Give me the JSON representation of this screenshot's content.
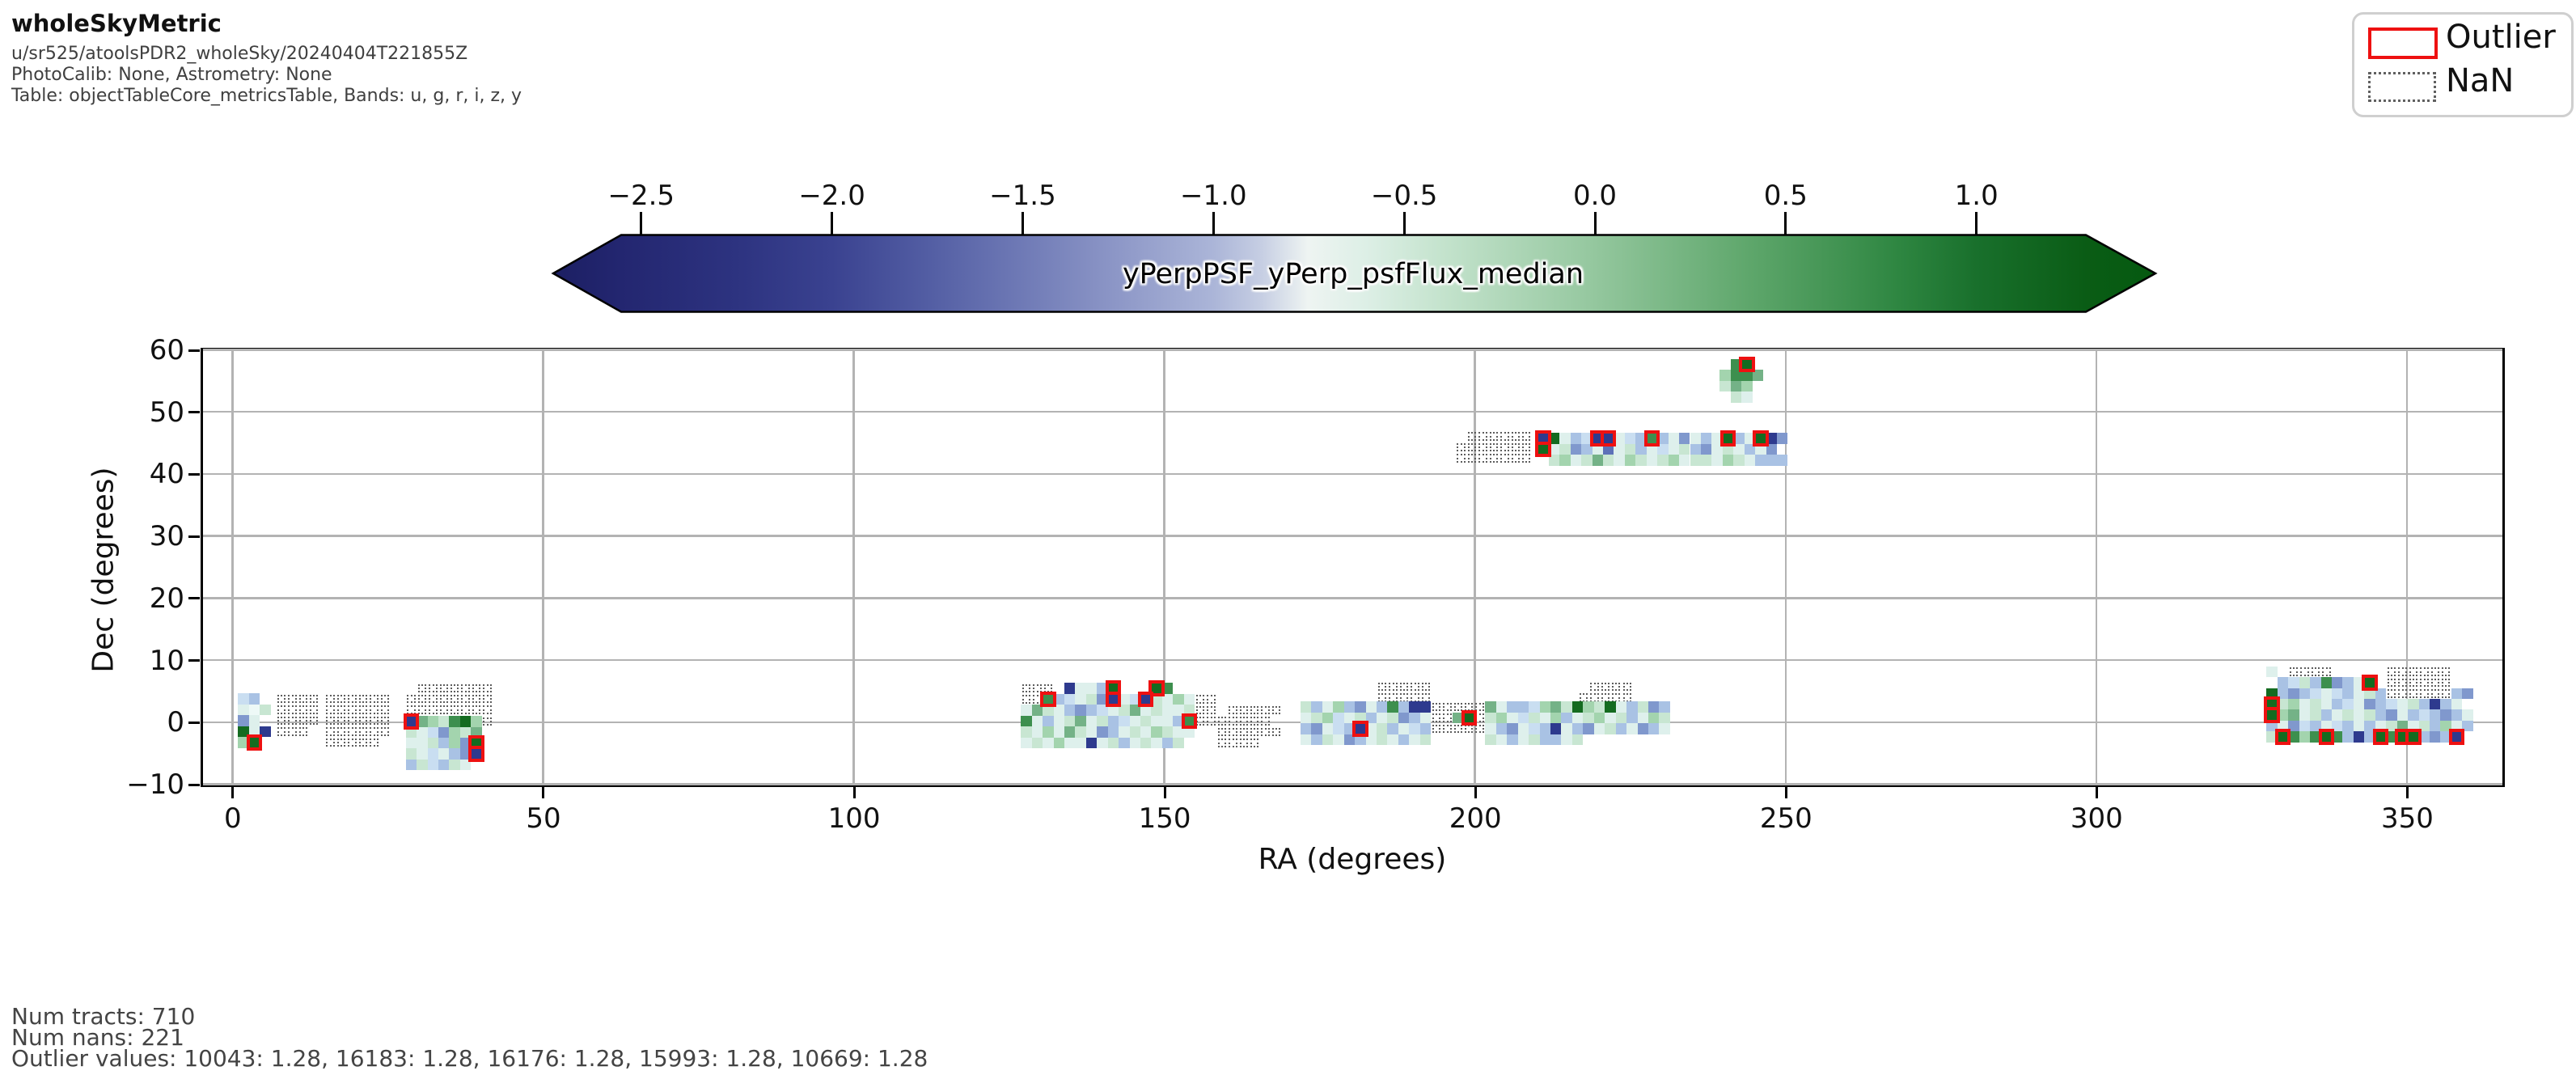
{
  "header": {
    "title": "wholeSkyMetric",
    "run": "u/sr525/atoolsPDR2_wholeSky/20240404T221855Z",
    "calib": "PhotoCalib: None, Astrometry: None",
    "table": "Table: objectTableCore_metricsTable, Bands: u, g, r, i, z, y"
  },
  "legend": {
    "outlier_label": "Outlier",
    "nan_label": "NaN",
    "outlier_color": "#ee1111",
    "nan_edge_color": "#606060"
  },
  "axes": {
    "xlabel": "RA (degrees)",
    "ylabel": "Dec (degrees)",
    "xtick_values": [
      0,
      50,
      100,
      150,
      200,
      250,
      300,
      350
    ],
    "xtick_labels": [
      "0",
      "50",
      "100",
      "150",
      "200",
      "250",
      "300",
      "350"
    ],
    "ytick_values": [
      60,
      50,
      40,
      30,
      20,
      10,
      0,
      -10
    ],
    "ytick_labels": [
      "60",
      "50",
      "40",
      "30",
      "20",
      "10",
      "0",
      "−10"
    ],
    "xlim": [
      -4.8,
      365.3
    ],
    "ylim": [
      -10,
      60
    ],
    "grid": true,
    "grid_color": "#b3b3b3"
  },
  "footer": {
    "num_tracts_line": "Num tracts: 710",
    "num_nans_line": "Num nans: 221",
    "outlier_line": "Outlier values: 10043: 1.28, 16183: 1.28, 16176: 1.28, 15993: 1.28, 10669: 1.28"
  },
  "chart_data": {
    "type": "heatmap",
    "title": "wholeSkyMetric",
    "xlabel": "RA (degrees)",
    "ylabel": "Dec (degrees)",
    "xlim": [
      -4.8,
      365.3
    ],
    "ylim": [
      -10,
      60
    ],
    "num_tracts": 710,
    "num_nans": 221,
    "outlier_values": {
      "10043": 1.28,
      "16183": 1.28,
      "16176": 1.28,
      "15993": 1.28,
      "10669": 1.28
    },
    "colorbar": {
      "label": "yPerpPSF_yPerp_psfFlux_median",
      "tick_values": [
        -2.5,
        -2.0,
        -1.5,
        -1.0,
        -0.5,
        0.0,
        0.5,
        1.0
      ],
      "tick_labels": [
        "−2.5",
        "−2.0",
        "−1.5",
        "−1.0",
        "−0.5",
        "0.0",
        "0.5",
        "1.0"
      ],
      "extend": "both",
      "gradient_stops": [
        {
          "o": 0.0,
          "c": "#1c1f63"
        },
        {
          "o": 0.042,
          "c": "#232670"
        },
        {
          "o": 0.114,
          "c": "#2d3380"
        },
        {
          "o": 0.174,
          "c": "#3a4290"
        },
        {
          "o": 0.233,
          "c": "#525da3"
        },
        {
          "o": 0.293,
          "c": "#6f7ab6"
        },
        {
          "o": 0.352,
          "c": "#8d97c7"
        },
        {
          "o": 0.412,
          "c": "#abb5d8"
        },
        {
          "o": 0.442,
          "c": "#c6cee3"
        },
        {
          "o": 0.471,
          "c": "#eef4f2"
        },
        {
          "o": 0.507,
          "c": "#ddefe6"
        },
        {
          "o": 0.555,
          "c": "#c4e3cd"
        },
        {
          "o": 0.65,
          "c": "#94c79e"
        },
        {
          "o": 0.745,
          "c": "#5fa76c"
        },
        {
          "o": 0.84,
          "c": "#2e8641"
        },
        {
          "o": 0.888,
          "c": "#19702c"
        },
        {
          "o": 0.957,
          "c": "#0a5c15"
        },
        {
          "o": 1.0,
          "c": "#055a10"
        }
      ]
    },
    "cell_size_deg": 1.75,
    "palette": {
      "a": "#c9def1",
      "b": "#a9c2e4",
      "c": "#8098cd",
      "d": "#5d71b8",
      "e": "#2e3a8e",
      "f": "#def0ec",
      "m": "#eef9f7",
      "g": "#c8e6d2",
      "h": "#a3d4ae",
      "i": "#74b287",
      "j": "#3d8f4e",
      "k": "#146b20"
    },
    "encoding_note": "each char = one tract cell; lowercase = palette color, uppercase E/K/J = outlier (red box) of colors e/k/j, '.' = NaN cell, '0' = empty",
    "clusters": [
      {
        "name": "ra0-patch",
        "ra": 0.9,
        "dec": 4.6,
        "rows": [
          "ab",
          "fmg",
          "cf",
          "kfe",
          "hK"
        ]
      },
      {
        "name": "ra7-nan",
        "ra": 7.0,
        "dec": 4.6,
        "rows": [
          "....",
          "....",
          "....",
          "...0"
        ]
      },
      {
        "name": "ra15-nan",
        "ra": 14.9,
        "dec": 4.6,
        "rows": [
          "......",
          "......",
          "......",
          "......",
          ".....0"
        ]
      },
      {
        "name": "ra28-nan",
        "ra": 27.9,
        "dec": 6.35,
        "rows": [
          "0.......",
          "........",
          "........"
        ]
      },
      {
        "name": "ra28-patch",
        "ra": 27.9,
        "dec": 1.0,
        "rows": [
          "Eihgjkh.",
          "gfachgi0",
          "ffgbhcK0",
          "gfafbcE0",
          "bgabgf00"
        ]
      },
      {
        "name": "ra127-patch",
        "ra": 126.9,
        "dec": 6.3,
        "rows": [
          "...0effbK000Kj0000",
          "..JbafgcEfaEgfhf..",
          "figfbcbafgifgffg..",
          "jfbfgifgbafgffbJ..",
          "gfhfigfcbfgfhgff00",
          "fgfhffefgbfgfbg000"
        ]
      },
      {
        "name": "ra158-nan",
        "ra": 158.4,
        "dec": 2.8,
        "rows": [
          "0.....",
          ".....0",
          "......",
          "....00"
        ]
      },
      {
        "name": "ra184-nan-bump",
        "ra": 184.2,
        "dec": 6.55,
        "rows": [
          ".....",
          "....."
        ]
      },
      {
        "name": "ra217-nan-bump",
        "ra": 216.6,
        "dec": 6.55,
        "rows": [
          "0....",
          "....."
        ]
      },
      {
        "name": "ra172-band",
        "ra": 171.9,
        "dec": 3.3,
        "rows": [
          "gbfhbcfbjbee.....ifbbahigkhgkfbgcb",
          "fghafgbfgcbf..iK.ghfagfhbfghfgbfhg",
          "bcfabEfgbfab.....fbcfabefbcfgbfcbf",
          "fbgfcbfgfbfg00000gfbfgbbfg00000000"
        ]
      },
      {
        "name": "ra197-nan-dec45",
        "ra": 196.9,
        "dec": 46.9,
        "rows": [
          "0......",
          ".......",
          "......."
        ]
      },
      {
        "name": "ra210-band-dec45",
        "ra": 210.1,
        "dec": 46.6,
        "rows": [
          "EkfbaEEfabJbfcfbfKbfKec",
          "Kfgcbfdfgbfafgbcfgfbfc0",
          "0ghfgigfhgfghfggfhgfbbb"
        ]
      },
      {
        "name": "ra240-patch-dec56",
        "ra": 239.4,
        "dec": 58.5,
        "rows": [
          "0jK0",
          "hjji",
          "gih0",
          "0gf0"
        ]
      },
      {
        "name": "ra330-patch",
        "ra": 327.4,
        "dec": 9.0,
        "rows": [
          "f0....00000......000",
          "0bagbjcbfK0......000",
          "kbcbafabfgb......bc0",
          "Kghfgfbafcbafgbebf00",
          "Khifgbfgfgbcfbabcbf0",
          "bfcabfabfbfgifgbhfb0",
          "gKjhjKjbebKjKKbcbE00"
        ]
      }
    ]
  }
}
